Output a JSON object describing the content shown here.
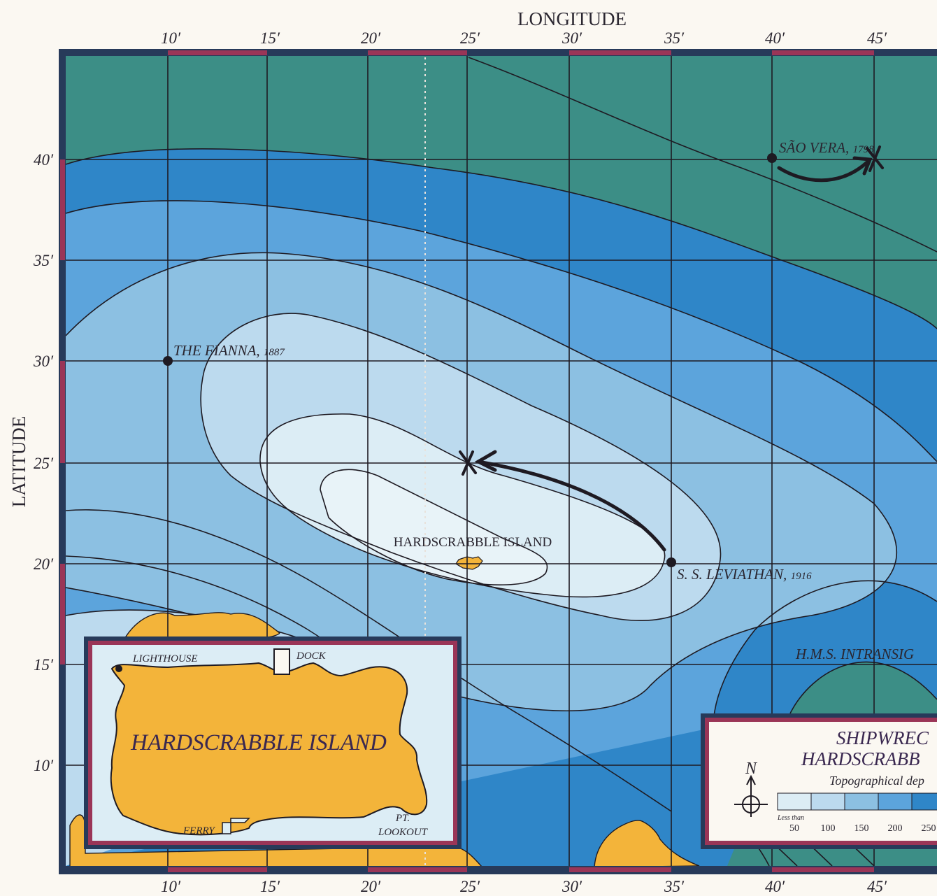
{
  "map": {
    "axis_x_title": "LONGITUDE",
    "axis_y_title": "LATITUDE",
    "lon_ticks": [
      "10′",
      "15′",
      "20′",
      "25′",
      "30′",
      "35′",
      "40′",
      "45′"
    ],
    "lat_ticks": [
      "40′",
      "35′",
      "30′",
      "25′",
      "20′",
      "15′",
      "10′"
    ],
    "colors": {
      "deep": "#3c8e86",
      "blue_dark": "#2f86c8",
      "blue_mid": "#5ca4dc",
      "blue_light": "#8cc0e2",
      "blue_pale": "#bcdaee",
      "blue_palest": "#dcedf5",
      "land": "#f3b43a",
      "frame_dark": "#273a5a",
      "frame_red": "#9a3557",
      "ink": "#1e1a22"
    }
  },
  "wrecks": [
    {
      "name": "SÃO VERA,",
      "year": "1798"
    },
    {
      "name": "THE FIANNA,",
      "year": "1887"
    },
    {
      "name": "S. S. LEVIATHAN,",
      "year": "1916"
    },
    {
      "name": "H.M.S. INTRANSIG",
      "year": ""
    }
  ],
  "island_label": "HARDSCRABBLE ISLAND",
  "inset": {
    "title": "HARDSCRABBLE ISLAND",
    "lighthouse": "LIGHTHOUSE",
    "dock": "DOCK",
    "ferry": "FERRY",
    "lookout_1": "PT.",
    "lookout_2": "LOOKOUT"
  },
  "legend": {
    "title_1": "SHIPWREC",
    "title_2": "HARDSCRABB",
    "subtitle": "Topographical dep",
    "north": "N",
    "less_than": "Less than",
    "depth_labels": [
      "50",
      "100",
      "150",
      "200",
      "250"
    ]
  }
}
